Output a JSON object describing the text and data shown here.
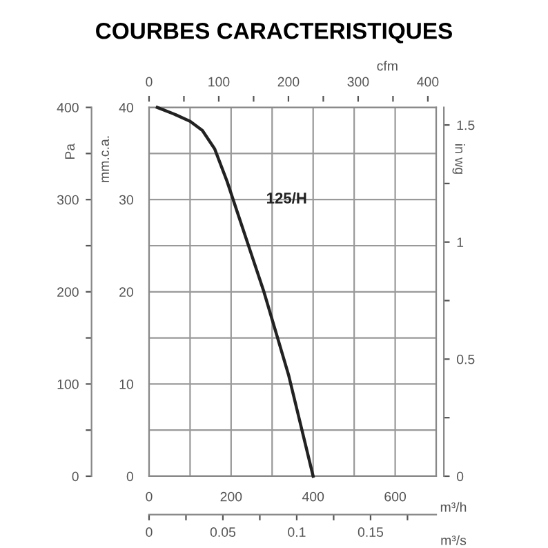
{
  "chart_data": {
    "type": "line",
    "title": "COURBES CARACTERISTIQUES",
    "xlabel": "m³/h",
    "ylabel": "mm.c.a.",
    "y2label": "in wg",
    "y3label": "Pa",
    "x2label": "cfm",
    "annotations": [
      "0",
      "0.05",
      "0.1",
      "0.15",
      "m³/s"
    ],
    "x": [
      20,
      60,
      100,
      130,
      160,
      190,
      220,
      250,
      280,
      310,
      340,
      370,
      400
    ],
    "series": [
      {
        "name": "125/H",
        "color": "#222222",
        "values": [
          40,
          39.3,
          38.5,
          37.5,
          35.5,
          32,
          28,
          24,
          20,
          15.5,
          11,
          5.5,
          0
        ]
      }
    ],
    "xlim": [
      0,
      700
    ],
    "ylim": [
      0,
      40
    ],
    "xticks": [
      0,
      {
        "value": 100,
        "label": null
      },
      200,
      {
        "value": 300,
        "label": null
      },
      400,
      {
        "value": 500,
        "label": null
      },
      600,
      {
        "value": 700,
        "label": null
      }
    ],
    "yticks": [
      0,
      {
        "value": 5,
        "label": null
      },
      10,
      {
        "value": 15,
        "label": null
      },
      20,
      {
        "value": 25,
        "label": null
      },
      30,
      {
        "value": 35,
        "label": null
      },
      40
    ],
    "y2lim": [
      0,
      1.575
    ],
    "y2ticks": [
      0,
      {
        "value": 0.25,
        "label": null
      },
      0.5,
      {
        "value": 0.75,
        "label": null
      },
      1,
      {
        "value": 1.25,
        "label": null
      },
      1.5
    ],
    "y3lim": [
      0,
      400
    ],
    "y3ticks": [
      0,
      {
        "value": 50,
        "label": null
      },
      100,
      {
        "value": 150,
        "label": null
      },
      200,
      {
        "value": 250,
        "label": null
      },
      300,
      {
        "value": 350,
        "label": null
      },
      400
    ],
    "x2lim": [
      0,
      412
    ],
    "x2ticks": [
      0,
      {
        "value": 50,
        "label": null
      },
      100,
      {
        "value": 150,
        "label": null
      },
      200,
      {
        "value": 250,
        "label": null
      },
      300,
      {
        "value": 350,
        "label": null
      },
      400
    ],
    "grid": true,
    "marker": "none",
    "line_style": "solid",
    "legend": false
  }
}
